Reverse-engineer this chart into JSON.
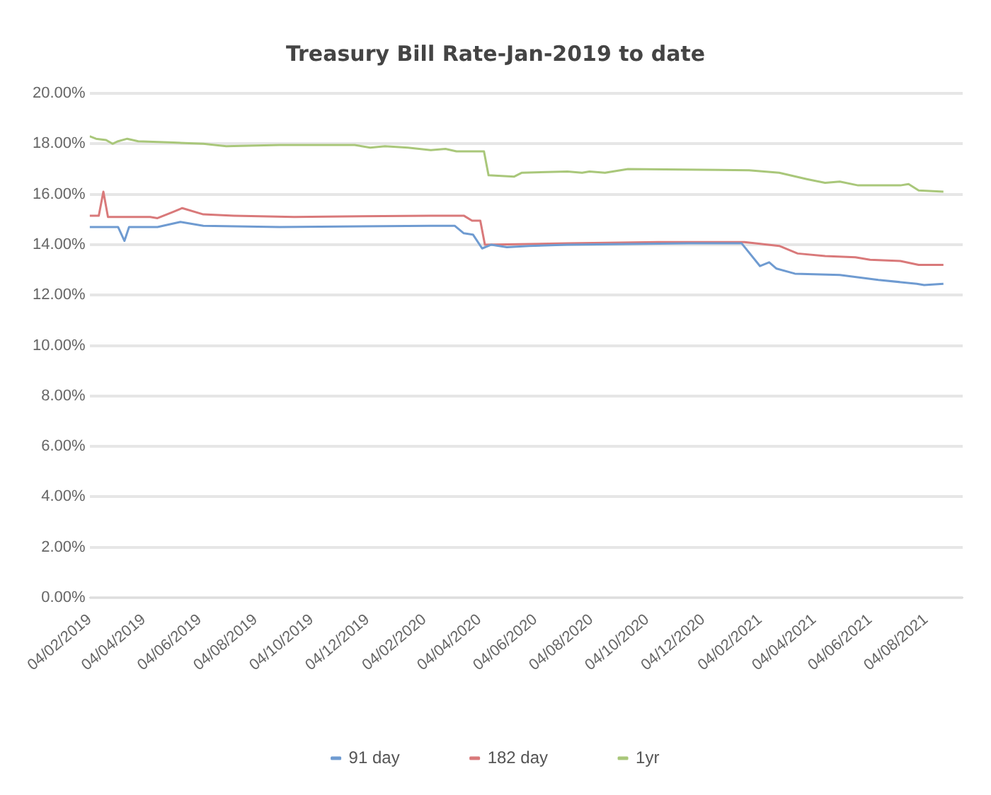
{
  "chart_data": {
    "type": "line",
    "title": "Treasury Bill Rate-Jan-2019 to date",
    "xlim": [
      "2019-02-04",
      "2021-09-13"
    ],
    "xticks": [
      {
        "value": "2019-02-04",
        "label": "04/02/2019"
      },
      {
        "value": "2019-04-04",
        "label": "04/04/2019"
      },
      {
        "value": "2019-06-04",
        "label": "04/06/2019"
      },
      {
        "value": "2019-08-04",
        "label": "04/08/2019"
      },
      {
        "value": "2019-10-04",
        "label": "04/10/2019"
      },
      {
        "value": "2019-12-04",
        "label": "04/12/2019"
      },
      {
        "value": "2020-02-04",
        "label": "04/02/2020"
      },
      {
        "value": "2020-04-04",
        "label": "04/04/2020"
      },
      {
        "value": "2020-06-04",
        "label": "04/06/2020"
      },
      {
        "value": "2020-08-04",
        "label": "04/08/2020"
      },
      {
        "value": "2020-10-04",
        "label": "04/10/2020"
      },
      {
        "value": "2020-12-04",
        "label": "04/12/2020"
      },
      {
        "value": "2021-02-04",
        "label": "04/02/2021"
      },
      {
        "value": "2021-04-04",
        "label": "04/04/2021"
      },
      {
        "value": "2021-06-04",
        "label": "04/06/2021"
      },
      {
        "value": "2021-08-04",
        "label": "04/08/2021"
      }
    ],
    "ylim": [
      0,
      20
    ],
    "yticks": [
      {
        "value": 0,
        "label": "0.00%"
      },
      {
        "value": 2,
        "label": "2.00%"
      },
      {
        "value": 4,
        "label": "4.00%"
      },
      {
        "value": 6,
        "label": "6.00%"
      },
      {
        "value": 8,
        "label": "8.00%"
      },
      {
        "value": 10,
        "label": "10.00%"
      },
      {
        "value": 12,
        "label": "12.00%"
      },
      {
        "value": 14,
        "label": "14.00%"
      },
      {
        "value": 16,
        "label": "16.00%"
      },
      {
        "value": 18,
        "label": "18.00%"
      },
      {
        "value": 20,
        "label": "20.00%"
      }
    ],
    "grid": "y",
    "legend": "bottom",
    "marker": "none",
    "line_style": "solid",
    "series": [
      {
        "name": "91 day",
        "color": "#6f9bd1",
        "x": [
          "2019-02-04",
          "2019-03-07",
          "2019-03-14",
          "2019-03-19",
          "2019-04-19",
          "2019-05-14",
          "2019-06-08",
          "2019-08-30",
          "2020-02-11",
          "2020-03-08",
          "2020-03-18",
          "2020-03-28",
          "2020-04-07",
          "2020-04-17",
          "2020-05-04",
          "2020-05-28",
          "2020-07-09",
          "2020-11-18",
          "2021-01-15",
          "2021-02-04",
          "2021-02-14",
          "2021-02-22",
          "2021-03-14",
          "2021-05-02",
          "2021-06-13",
          "2021-07-25",
          "2021-08-02",
          "2021-08-23"
        ],
        "values": [
          14.7,
          14.7,
          14.15,
          14.7,
          14.7,
          14.9,
          14.75,
          14.7,
          14.75,
          14.75,
          14.45,
          14.4,
          13.85,
          14.0,
          13.9,
          13.95,
          14.0,
          14.05,
          14.05,
          13.15,
          13.3,
          13.05,
          12.85,
          12.8,
          12.6,
          12.45,
          12.4,
          12.45
        ]
      },
      {
        "name": "182 day",
        "color": "#d9797a",
        "x": [
          "2019-02-04",
          "2019-02-14",
          "2019-02-19",
          "2019-02-24",
          "2019-04-11",
          "2019-04-19",
          "2019-05-06",
          "2019-05-16",
          "2019-06-08",
          "2019-07-11",
          "2019-09-15",
          "2020-02-11",
          "2020-03-18",
          "2020-03-27",
          "2020-04-05",
          "2020-04-10",
          "2020-07-09",
          "2020-10-16",
          "2021-01-18",
          "2021-02-25",
          "2021-03-17",
          "2021-04-16",
          "2021-05-19",
          "2021-06-04",
          "2021-07-07",
          "2021-07-27",
          "2021-08-23"
        ],
        "values": [
          15.15,
          15.15,
          16.1,
          15.1,
          15.1,
          15.05,
          15.3,
          15.45,
          15.2,
          15.15,
          15.1,
          15.15,
          15.15,
          14.95,
          14.95,
          14.0,
          14.05,
          14.1,
          14.1,
          13.95,
          13.65,
          13.55,
          13.5,
          13.4,
          13.35,
          13.2,
          13.2
        ]
      },
      {
        "name": "1yr",
        "color": "#a9c77a",
        "x": [
          "2019-02-04",
          "2019-02-11",
          "2019-02-22",
          "2019-03-01",
          "2019-03-07",
          "2019-03-17",
          "2019-03-29",
          "2019-05-06",
          "2019-06-08",
          "2019-07-03",
          "2019-08-30",
          "2019-11-20",
          "2019-12-07",
          "2019-12-23",
          "2020-01-17",
          "2020-02-11",
          "2020-02-27",
          "2020-03-10",
          "2020-04-09",
          "2020-04-14",
          "2020-05-12",
          "2020-05-20",
          "2020-07-09",
          "2020-07-25",
          "2020-08-02",
          "2020-08-19",
          "2020-09-13",
          "2021-01-23",
          "2021-02-25",
          "2021-03-27",
          "2021-04-16",
          "2021-05-02",
          "2021-05-22",
          "2021-07-07",
          "2021-07-16",
          "2021-07-27",
          "2021-08-23"
        ],
        "values": [
          18.3,
          18.2,
          18.15,
          18.0,
          18.1,
          18.2,
          18.1,
          18.05,
          18.0,
          17.9,
          17.95,
          17.95,
          17.85,
          17.9,
          17.85,
          17.75,
          17.8,
          17.7,
          17.7,
          16.75,
          16.7,
          16.85,
          16.9,
          16.85,
          16.9,
          16.85,
          17.0,
          16.95,
          16.85,
          16.6,
          16.45,
          16.5,
          16.35,
          16.35,
          16.4,
          16.15,
          16.1
        ]
      }
    ]
  }
}
